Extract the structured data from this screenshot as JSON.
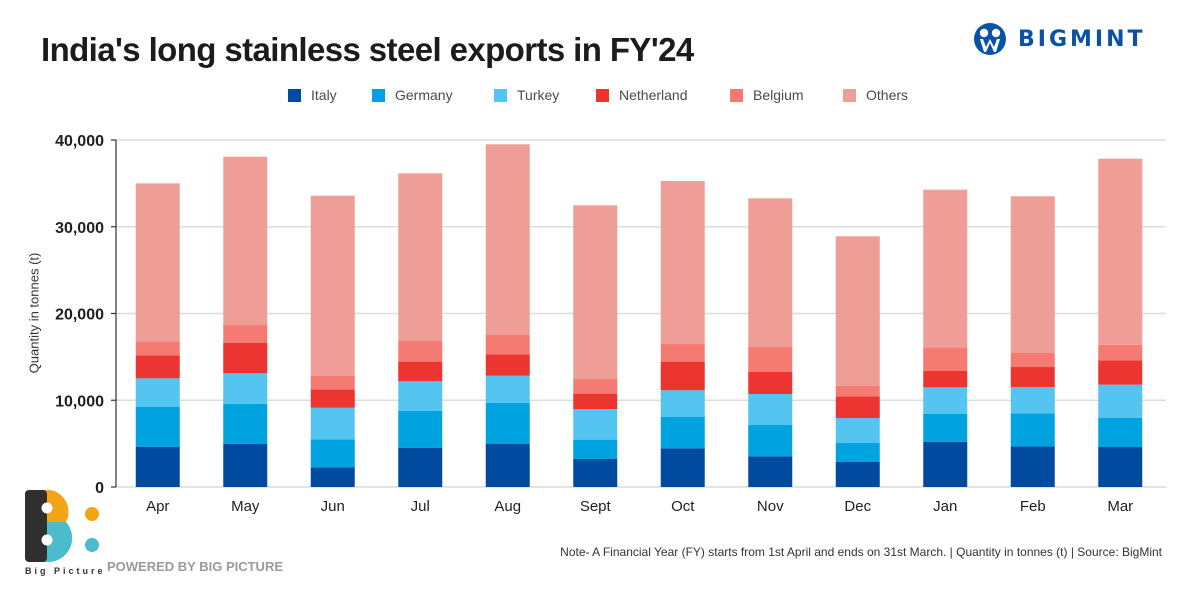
{
  "header": {
    "title": "India's long stainless steel exports in FY'24",
    "brand": "BIGMINT"
  },
  "footer": {
    "note": "Note- A Financial Year (FY) starts from 1st April and ends on 31st March. | Quantity in tonnes (t) | Source: BigMint",
    "powered_by": "POWERED BY BIG PICTURE",
    "logo_text": "Big Picture"
  },
  "colors": {
    "Italy": "#004a9f",
    "Germany": "#00a2df",
    "Turkey": "#54c4f0",
    "Netherland": "#ec3431",
    "Belgium": "#f57b72",
    "Others": "#ef9d97"
  },
  "chart_data": {
    "type": "bar",
    "stacked": true,
    "title": "India's long stainless steel exports in FY'24",
    "xlabel": "",
    "ylabel": "Quantity in tonnes (t)",
    "ylim": [
      0,
      40000
    ],
    "yticks": [
      0,
      10000,
      20000,
      30000,
      40000
    ],
    "ytick_labels": [
      "0",
      "10,000",
      "20,000",
      "30,000",
      "40,000"
    ],
    "grid": true,
    "legend_position": "top-center",
    "categories": [
      "Apr",
      "May",
      "Jun",
      "Jul",
      "Aug",
      "Sept",
      "Oct",
      "Nov",
      "Dec",
      "Jan",
      "Feb",
      "Mar"
    ],
    "series": [
      {
        "name": "Italy",
        "values": [
          4650,
          4960,
          2270,
          4500,
          5000,
          3230,
          4460,
          3540,
          2880,
          5220,
          4690,
          4610
        ]
      },
      {
        "name": "Germany",
        "values": [
          4610,
          4640,
          3230,
          4260,
          4680,
          2230,
          3610,
          3610,
          2190,
          3230,
          3800,
          3380
        ]
      },
      {
        "name": "Turkey",
        "values": [
          3270,
          3500,
          3640,
          3420,
          3150,
          3530,
          3080,
          3570,
          2880,
          3040,
          3040,
          3810
        ]
      },
      {
        "name": "Netherland",
        "values": [
          2650,
          3500,
          2120,
          2270,
          2470,
          1770,
          3300,
          2540,
          2500,
          1920,
          2300,
          2800
        ]
      },
      {
        "name": "Belgium",
        "values": [
          1620,
          2070,
          1540,
          2380,
          2220,
          1730,
          2030,
          2880,
          1230,
          2690,
          1620,
          1800
        ]
      },
      {
        "name": "Others",
        "values": [
          18200,
          19400,
          20780,
          19330,
          21980,
          19980,
          18790,
          17140,
          17220,
          18170,
          18060,
          21450
        ]
      }
    ]
  }
}
